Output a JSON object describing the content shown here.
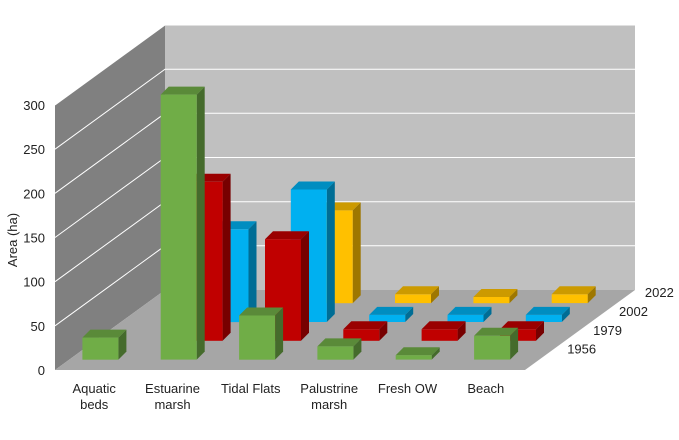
{
  "chart_data": {
    "type": "bar",
    "subtype": "3d-clustered-column",
    "title": "",
    "ylabel": "Area (ha)",
    "xlabel": "",
    "ylim": [
      0,
      300
    ],
    "y_ticks": [
      "0",
      "50",
      "100",
      "150",
      "200",
      "250",
      "300"
    ],
    "categories": [
      [
        "Aquatic",
        "beds"
      ],
      [
        "Estuarine",
        "marsh"
      ],
      [
        "Tidal Flats"
      ],
      [
        "Palustrine",
        "marsh"
      ],
      [
        "Fresh OW"
      ],
      [
        "Beach"
      ]
    ],
    "series": [
      {
        "name": "1956",
        "values": [
          25,
          300,
          50,
          15,
          5,
          27
        ]
      },
      {
        "name": "1979",
        "values": [
          0,
          180,
          115,
          13,
          13,
          13
        ]
      },
      {
        "name": "2002",
        "values": [
          0,
          105,
          150,
          8,
          8,
          8
        ]
      },
      {
        "name": "2022",
        "values": [
          0,
          0,
          105,
          10,
          7,
          10
        ]
      }
    ],
    "grid": true,
    "colors": {
      "1956": "#70ad47",
      "1979": "#c00000",
      "2002": "#00b0f0",
      "2022": "#ffc000",
      "back_wall": "#c0c0c0",
      "side_wall": "#808080",
      "floor": "#a6a6a6",
      "gridline": "#ffffff"
    }
  }
}
